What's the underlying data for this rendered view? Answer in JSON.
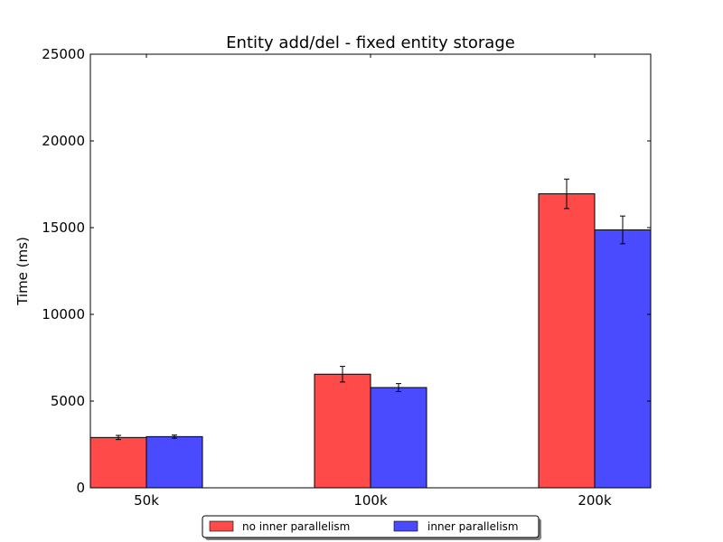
{
  "chart_data": {
    "type": "bar",
    "title": "Entity add/del - fixed entity storage",
    "xlabel": "",
    "ylabel": "Time (ms)",
    "categories": [
      "50k",
      "100k",
      "200k"
    ],
    "ylim": [
      0,
      25000
    ],
    "yticks": [
      0,
      5000,
      10000,
      15000,
      20000,
      25000
    ],
    "grid": false,
    "legend_position": "bottom",
    "series": [
      {
        "name": "no inner parallelism",
        "color": "#ff4a4a",
        "values": [
          2900,
          6550,
          16950
        ],
        "errors": [
          120,
          450,
          850
        ]
      },
      {
        "name": "inner parallelism",
        "color": "#4a4aff",
        "values": [
          2950,
          5780,
          14870
        ],
        "errors": [
          90,
          230,
          800
        ]
      }
    ]
  }
}
